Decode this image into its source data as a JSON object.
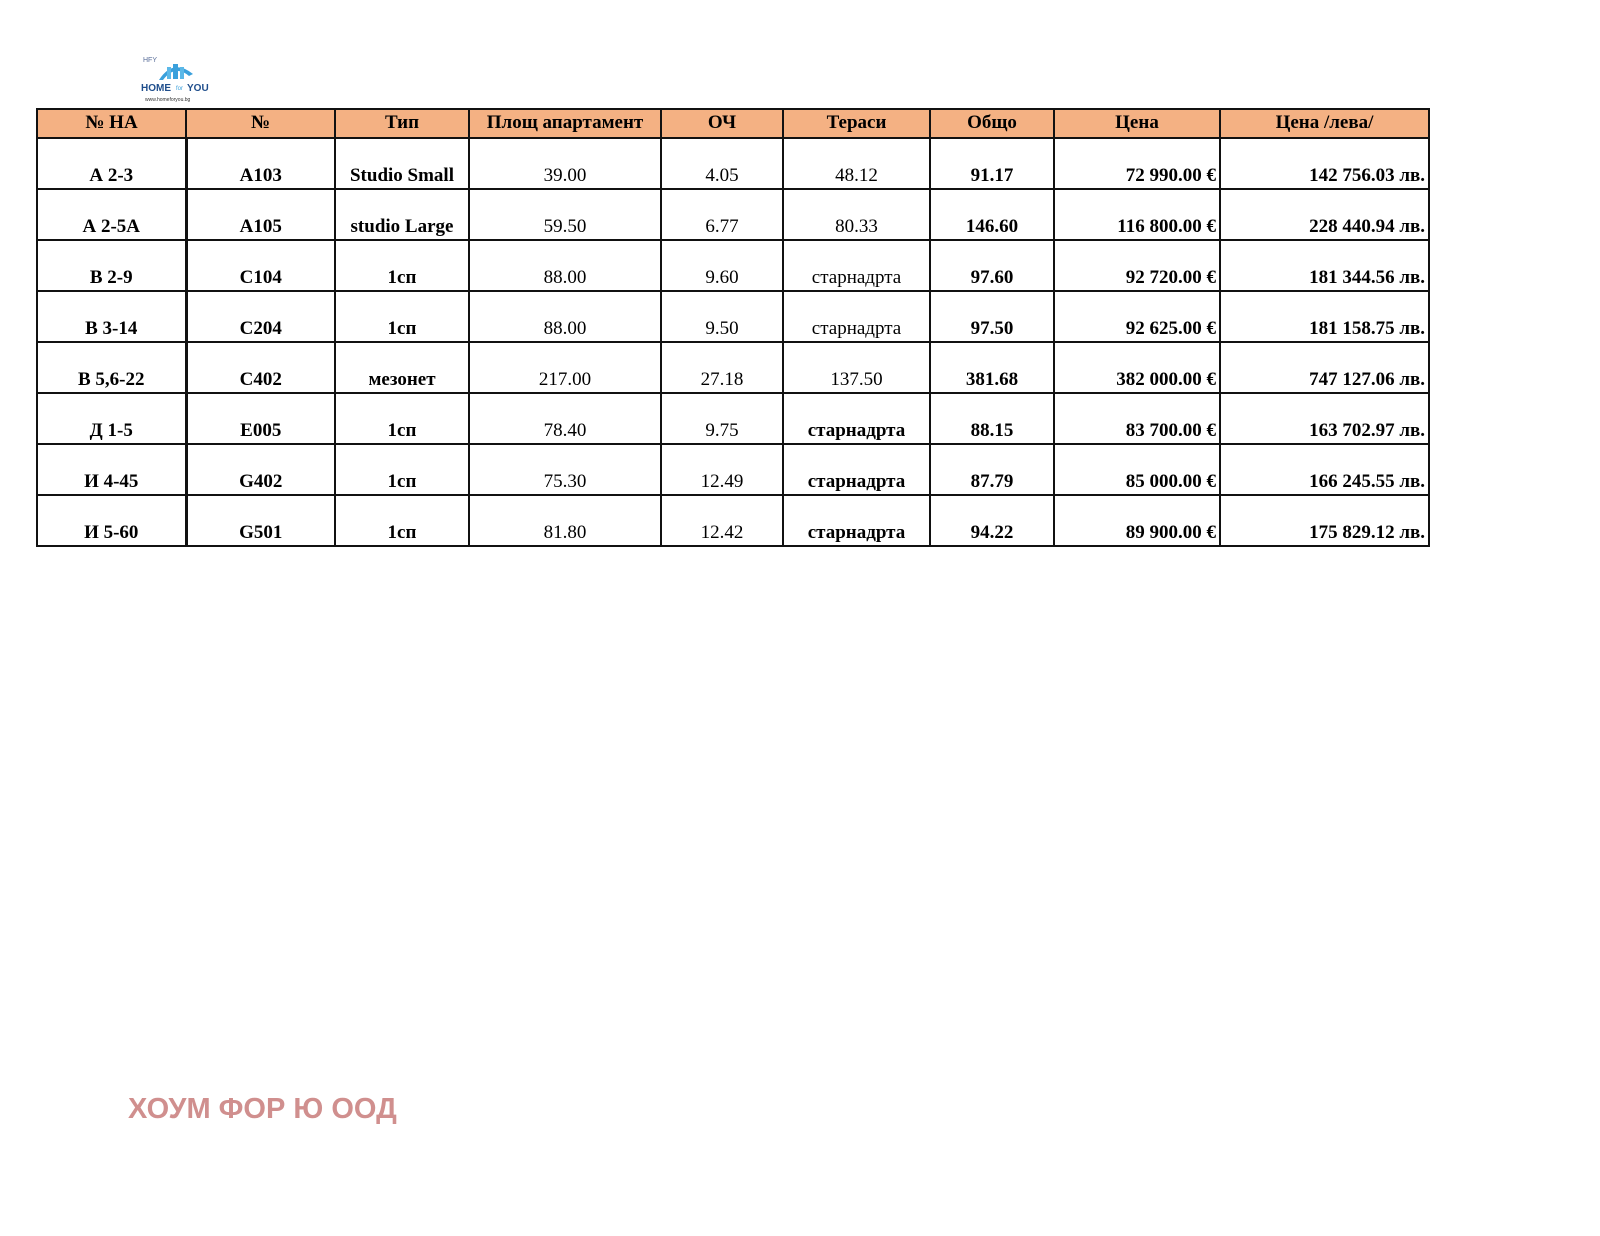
{
  "logo": {
    "brand": "HOME for YOU",
    "monogram": "HFY",
    "url": "www.homeforyou.bg"
  },
  "table": {
    "headers": [
      "№ НА",
      "№",
      "Тип",
      "Площ апартамент",
      "ОЧ",
      "Тераси",
      "Общо",
      "Цена",
      "Цена /лева/"
    ],
    "rows": [
      [
        "А 2-3",
        "A103",
        "Studio Small",
        "39.00",
        "4.05",
        "48.12",
        "91.17",
        "72 990.00 €",
        "142 756.03 лв."
      ],
      [
        "А 2-5А",
        "A105",
        "studio Large",
        "59.50",
        "6.77",
        "80.33",
        "146.60",
        "116 800.00 €",
        "228 440.94 лв."
      ],
      [
        "В 2-9",
        "C104",
        "1сп",
        "88.00",
        "9.60",
        "старнадрта",
        "97.60",
        "92 720.00 €",
        "181 344.56 лв."
      ],
      [
        "В 3-14",
        "C204",
        "1сп",
        "88.00",
        "9.50",
        "старнадрта",
        "97.50",
        "92 625.00 €",
        "181 158.75 лв."
      ],
      [
        "В 5,6-22",
        "C402",
        "мезонет",
        "217.00",
        "27.18",
        "137.50",
        "381.68",
        "382 000.00 €",
        "747 127.06 лв."
      ],
      [
        "Д 1-5",
        "E005",
        "1сп",
        "78.40",
        "9.75",
        "старнадрта",
        "88.15",
        "83 700.00 €",
        "163 702.97 лв."
      ],
      [
        "И 4-45",
        "G402",
        "1сп",
        "75.30",
        "12.49",
        "старнадрта",
        "87.79",
        "85 000.00 €",
        "166 245.55 лв."
      ],
      [
        "И 5-60",
        "G501",
        "1сп",
        "81.80",
        "12.42",
        "старнадрта",
        "94.22",
        "89 900.00 €",
        "175 829.12 лв."
      ]
    ],
    "header_color": "#f4b183"
  },
  "footer": {
    "company": "ХОУМ ФОР Ю ООД",
    "color": "#d08f8e"
  }
}
